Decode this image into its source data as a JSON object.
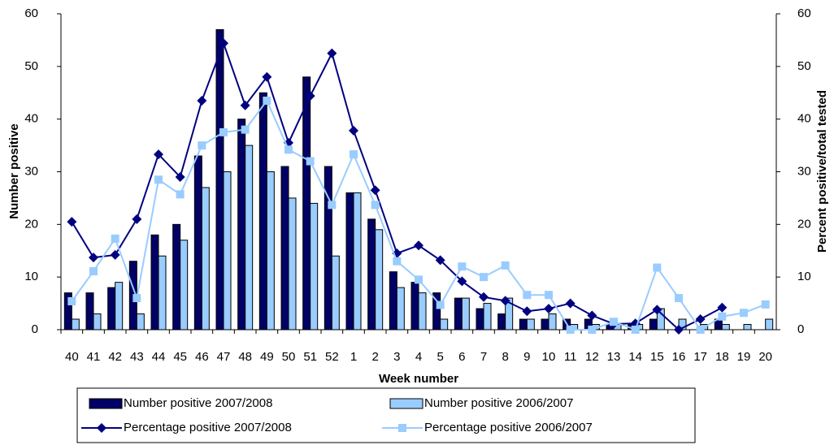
{
  "chart_data": {
    "type": "bar-line",
    "x_label": "Week number",
    "y_label": "Number positive",
    "y2_label": "Percent positive/total tested",
    "categories": [
      "40",
      "41",
      "42",
      "43",
      "44",
      "45",
      "46",
      "47",
      "48",
      "49",
      "50",
      "51",
      "52",
      "1",
      "2",
      "3",
      "4",
      "5",
      "6",
      "7",
      "8",
      "9",
      "10",
      "11",
      "12",
      "13",
      "14",
      "15",
      "16",
      "17",
      "18",
      "19",
      "20"
    ],
    "ylim": [
      0,
      60
    ],
    "yticks": [
      0,
      10,
      20,
      30,
      40,
      50,
      60
    ],
    "y2lim": [
      0,
      60
    ],
    "y2ticks": [
      0,
      10,
      20,
      30,
      40,
      50,
      60
    ],
    "series": [
      {
        "name": "Number positive 2007/2008",
        "kind": "bar",
        "color": "#000066",
        "values": [
          7,
          7,
          8,
          13,
          18,
          20,
          33,
          57,
          40,
          45,
          31,
          48,
          31,
          26,
          21,
          11,
          9,
          7,
          6,
          4,
          3,
          2,
          2,
          2,
          2,
          1,
          1,
          2,
          0,
          0,
          2,
          0,
          0
        ]
      },
      {
        "name": "Number positive 2006/2007",
        "kind": "bar",
        "color": "#99ccff",
        "values": [
          2,
          3,
          9,
          3,
          14,
          17,
          27,
          30,
          35,
          30,
          25,
          24,
          14,
          26,
          19,
          8,
          7,
          2,
          6,
          5,
          6,
          2,
          3,
          1,
          1,
          1,
          1,
          4,
          2,
          1,
          1,
          1,
          2
        ]
      },
      {
        "name": "Percentage positive 2007/2008",
        "kind": "line",
        "axis": "y2",
        "color": "#000080",
        "marker": "diamond",
        "values": [
          20.5,
          13.7,
          14.2,
          21,
          33.3,
          29,
          43.5,
          54.4,
          42.6,
          48,
          35.5,
          44.4,
          52.5,
          37.8,
          26.5,
          14.5,
          16,
          13.2,
          9.2,
          6.2,
          5.5,
          3.5,
          4,
          5,
          2.7,
          1.1,
          1.2,
          3.8,
          0,
          2,
          4.2,
          null,
          null
        ]
      },
      {
        "name": "Percentage positive 2006/2007",
        "kind": "line",
        "axis": "y2",
        "color": "#99ccff",
        "marker": "square",
        "values": [
          5.4,
          11.1,
          17.3,
          6,
          28.5,
          25.7,
          35,
          37.5,
          38,
          43.5,
          34.2,
          32,
          23.7,
          33.3,
          23.7,
          13,
          9.5,
          4.7,
          12,
          10,
          12.2,
          6.6,
          6.6,
          0,
          0,
          1.5,
          0,
          11.8,
          6,
          0,
          2.5,
          3.2,
          4.8
        ]
      }
    ]
  }
}
